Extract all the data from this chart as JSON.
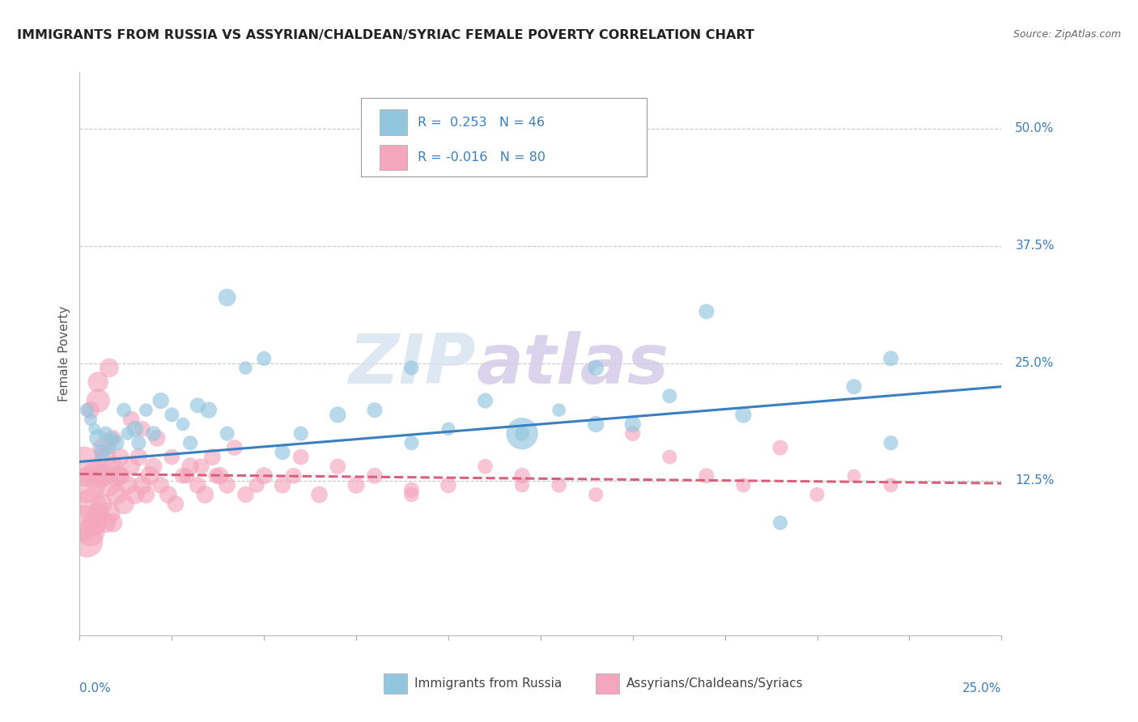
{
  "title": "IMMIGRANTS FROM RUSSIA VS ASSYRIAN/CHALDEAN/SYRIAC FEMALE POVERTY CORRELATION CHART",
  "source": "Source: ZipAtlas.com",
  "ylabel": "Female Poverty",
  "ytick_labels": [
    "12.5%",
    "25.0%",
    "37.5%",
    "50.0%"
  ],
  "ytick_values": [
    0.125,
    0.25,
    0.375,
    0.5
  ],
  "xlim": [
    0.0,
    0.25
  ],
  "ylim": [
    -0.04,
    0.56
  ],
  "legend_r1": "R =  0.253",
  "legend_n1": "N = 46",
  "legend_r2": "R = -0.016",
  "legend_n2": "N = 80",
  "color_blue": "#92c5de",
  "color_pink": "#f4a6be",
  "color_blue_line": "#3a7fc1",
  "color_pink_line": "#d9607a",
  "background_color": "#ffffff",
  "grid_color": "#c8c8c8",
  "blue_series_x": [
    0.002,
    0.003,
    0.004,
    0.005,
    0.006,
    0.007,
    0.008,
    0.009,
    0.01,
    0.012,
    0.013,
    0.015,
    0.016,
    0.018,
    0.02,
    0.022,
    0.025,
    0.028,
    0.03,
    0.032,
    0.035,
    0.04,
    0.045,
    0.05,
    0.055,
    0.06,
    0.07,
    0.08,
    0.09,
    0.1,
    0.11,
    0.12,
    0.13,
    0.14,
    0.15,
    0.16,
    0.17,
    0.19,
    0.21,
    0.22,
    0.12,
    0.14,
    0.18,
    0.22,
    0.04,
    0.09
  ],
  "blue_series_y": [
    0.2,
    0.19,
    0.18,
    0.17,
    0.155,
    0.175,
    0.16,
    0.17,
    0.165,
    0.2,
    0.175,
    0.18,
    0.165,
    0.2,
    0.175,
    0.21,
    0.195,
    0.185,
    0.165,
    0.205,
    0.2,
    0.175,
    0.245,
    0.255,
    0.155,
    0.175,
    0.195,
    0.2,
    0.165,
    0.18,
    0.21,
    0.175,
    0.2,
    0.185,
    0.185,
    0.215,
    0.305,
    0.08,
    0.225,
    0.165,
    0.175,
    0.245,
    0.195,
    0.255,
    0.32,
    0.245
  ],
  "blue_series_s": [
    35,
    30,
    25,
    55,
    45,
    38,
    32,
    28,
    42,
    38,
    32,
    48,
    38,
    32,
    42,
    48,
    38,
    32,
    38,
    42,
    48,
    38,
    32,
    38,
    42,
    38,
    48,
    42,
    38,
    32,
    42,
    38,
    32,
    48,
    48,
    38,
    42,
    38,
    42,
    38,
    180,
    45,
    48,
    42,
    55,
    38
  ],
  "pink_series_x": [
    0.001,
    0.001,
    0.002,
    0.002,
    0.003,
    0.003,
    0.004,
    0.004,
    0.005,
    0.005,
    0.006,
    0.006,
    0.007,
    0.007,
    0.008,
    0.008,
    0.009,
    0.009,
    0.01,
    0.01,
    0.011,
    0.012,
    0.013,
    0.014,
    0.015,
    0.016,
    0.017,
    0.018,
    0.019,
    0.02,
    0.022,
    0.024,
    0.026,
    0.028,
    0.03,
    0.032,
    0.034,
    0.036,
    0.038,
    0.04,
    0.045,
    0.05,
    0.055,
    0.06,
    0.065,
    0.07,
    0.075,
    0.08,
    0.09,
    0.1,
    0.11,
    0.12,
    0.13,
    0.14,
    0.15,
    0.16,
    0.17,
    0.18,
    0.19,
    0.2,
    0.21,
    0.22,
    0.09,
    0.12,
    0.005,
    0.008,
    0.003,
    0.006,
    0.009,
    0.011,
    0.014,
    0.017,
    0.021,
    0.025,
    0.029,
    0.033,
    0.037,
    0.042,
    0.048,
    0.058
  ],
  "pink_series_y": [
    0.14,
    0.08,
    0.12,
    0.06,
    0.1,
    0.07,
    0.13,
    0.08,
    0.21,
    0.09,
    0.1,
    0.13,
    0.15,
    0.08,
    0.12,
    0.09,
    0.14,
    0.08,
    0.11,
    0.13,
    0.13,
    0.1,
    0.12,
    0.14,
    0.11,
    0.15,
    0.12,
    0.11,
    0.13,
    0.14,
    0.12,
    0.11,
    0.1,
    0.13,
    0.14,
    0.12,
    0.11,
    0.15,
    0.13,
    0.12,
    0.11,
    0.13,
    0.12,
    0.15,
    0.11,
    0.14,
    0.12,
    0.13,
    0.11,
    0.12,
    0.14,
    0.13,
    0.12,
    0.11,
    0.175,
    0.15,
    0.13,
    0.12,
    0.16,
    0.11,
    0.13,
    0.12,
    0.115,
    0.12,
    0.23,
    0.245,
    0.2,
    0.16,
    0.17,
    0.15,
    0.19,
    0.18,
    0.17,
    0.15,
    0.13,
    0.14,
    0.13,
    0.16,
    0.12,
    0.13
  ],
  "pink_series_s": [
    280,
    220,
    230,
    180,
    170,
    140,
    130,
    110,
    100,
    85,
    75,
    95,
    85,
    75,
    95,
    85,
    75,
    65,
    75,
    85,
    65,
    75,
    65,
    55,
    65,
    55,
    65,
    55,
    65,
    55,
    50,
    55,
    50,
    45,
    55,
    50,
    55,
    50,
    55,
    50,
    48,
    52,
    48,
    45,
    50,
    45,
    50,
    45,
    40,
    45,
    40,
    45,
    40,
    38,
    42,
    38,
    42,
    38,
    42,
    38,
    32,
    38,
    42,
    38,
    75,
    65,
    55,
    60,
    50,
    55,
    50,
    45,
    50,
    45,
    42,
    45,
    42,
    45,
    42,
    45
  ],
  "blue_line_x": [
    0.0,
    0.25
  ],
  "blue_line_y": [
    0.145,
    0.225
  ],
  "pink_line_x": [
    0.0,
    0.25
  ],
  "pink_line_y": [
    0.132,
    0.122
  ],
  "legend_label1": "Immigrants from Russia",
  "legend_label2": "Assyrians/Chaldeans/Syriacs",
  "xtick_positions": [
    0.0,
    0.025,
    0.05,
    0.075,
    0.1,
    0.125,
    0.15,
    0.175,
    0.2,
    0.225,
    0.25
  ]
}
